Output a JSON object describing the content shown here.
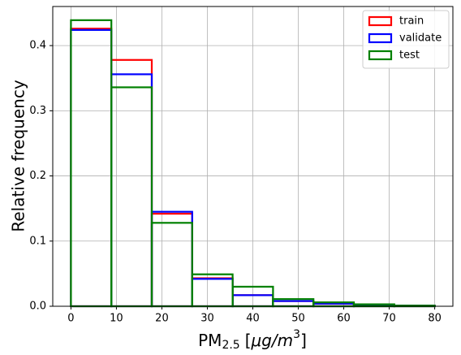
{
  "chart_data": {
    "type": "histogram",
    "xlabel": {
      "base": "PM",
      "sub": "2.5",
      "open": "[",
      "unit": "μg/m",
      "sup": "3",
      "close": "]"
    },
    "ylabel": "Relative frequency",
    "bins": [
      0,
      8.889,
      17.778,
      26.667,
      35.556,
      44.444,
      53.333,
      62.222,
      71.111,
      80
    ],
    "series": [
      {
        "name": "train",
        "color": "#ff0000",
        "values": [
          0.426,
          0.378,
          0.142,
          0.043,
          0.017,
          0.008,
          0.004,
          0.002,
          0.001
        ]
      },
      {
        "name": "validate",
        "color": "#0000ff",
        "values": [
          0.424,
          0.356,
          0.145,
          0.042,
          0.017,
          0.008,
          0.004,
          0.002,
          0.001
        ]
      },
      {
        "name": "test",
        "color": "#008000",
        "values": [
          0.439,
          0.336,
          0.128,
          0.049,
          0.03,
          0.011,
          0.006,
          0.003,
          0.001
        ]
      }
    ],
    "xlim": [
      -4,
      84
    ],
    "ylim": [
      0,
      0.46
    ],
    "xticks": [
      0,
      10,
      20,
      30,
      40,
      50,
      60,
      70,
      80
    ],
    "yticks": [
      {
        "value": 0,
        "label": "0.0"
      },
      0.1,
      0.2,
      0.3,
      0.4
    ],
    "grid": true,
    "legend": "upper right"
  }
}
